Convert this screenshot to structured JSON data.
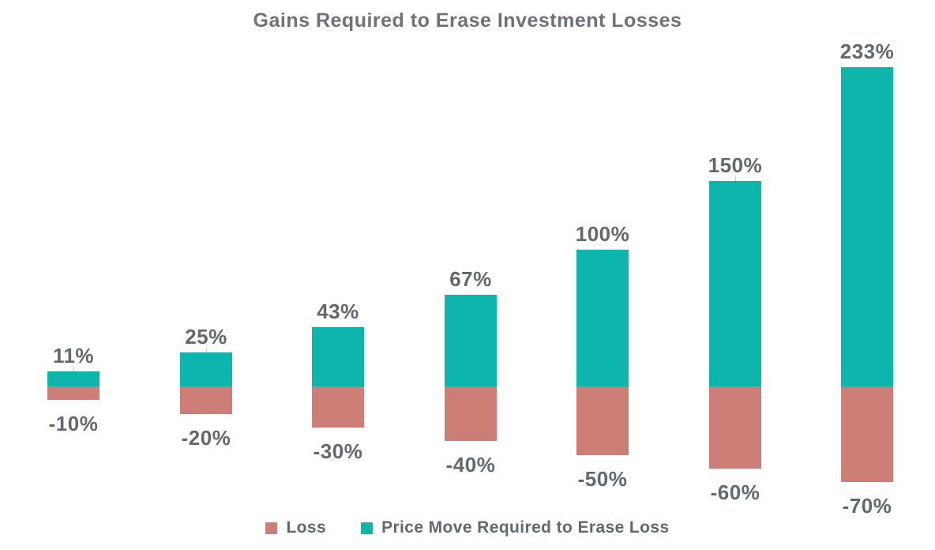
{
  "title": "Gains Required to Erase Investment Losses",
  "colors": {
    "loss": "#cd7e76",
    "gain": "#0db5ad",
    "label_text": "#62686e",
    "title_text": "#6d7278",
    "background": "#ffffff"
  },
  "chart_data": {
    "type": "bar",
    "stacked": true,
    "orientation": "vertical",
    "title": "Gains Required to Erase Investment Losses",
    "xlabel": "",
    "ylabel": "",
    "grid": false,
    "axes_visible": false,
    "legend_position": "bottom",
    "ylim": [
      -70,
      233
    ],
    "categories": [
      "-10%",
      "-20%",
      "-30%",
      "-40%",
      "-50%",
      "-60%",
      "-70%"
    ],
    "series": [
      {
        "name": "Loss",
        "color": "#cd7e76",
        "values": [
          -10,
          -20,
          -30,
          -40,
          -50,
          -60,
          -70
        ]
      },
      {
        "name": "Price Move Required to Erase Loss",
        "color": "#0db5ad",
        "values": [
          11,
          25,
          43,
          67,
          100,
          150,
          233
        ]
      }
    ],
    "bars": [
      {
        "loss": -10,
        "gain": 11,
        "loss_label": "-10%",
        "gain_label": "11%"
      },
      {
        "loss": -20,
        "gain": 25,
        "loss_label": "-20%",
        "gain_label": "25%"
      },
      {
        "loss": -30,
        "gain": 43,
        "loss_label": "-30%",
        "gain_label": "43%"
      },
      {
        "loss": -40,
        "gain": 67,
        "loss_label": "-40%",
        "gain_label": "67%"
      },
      {
        "loss": -50,
        "gain": 100,
        "loss_label": "-50%",
        "gain_label": "100%"
      },
      {
        "loss": -60,
        "gain": 150,
        "loss_label": "-60%",
        "gain_label": "150%"
      },
      {
        "loss": -70,
        "gain": 233,
        "loss_label": "-70%",
        "gain_label": "233%"
      }
    ]
  },
  "legend": {
    "items": [
      {
        "label": "Loss",
        "color": "#cd7e76"
      },
      {
        "label": "Price Move Required to Erase Loss",
        "color": "#0db5ad"
      }
    ]
  }
}
